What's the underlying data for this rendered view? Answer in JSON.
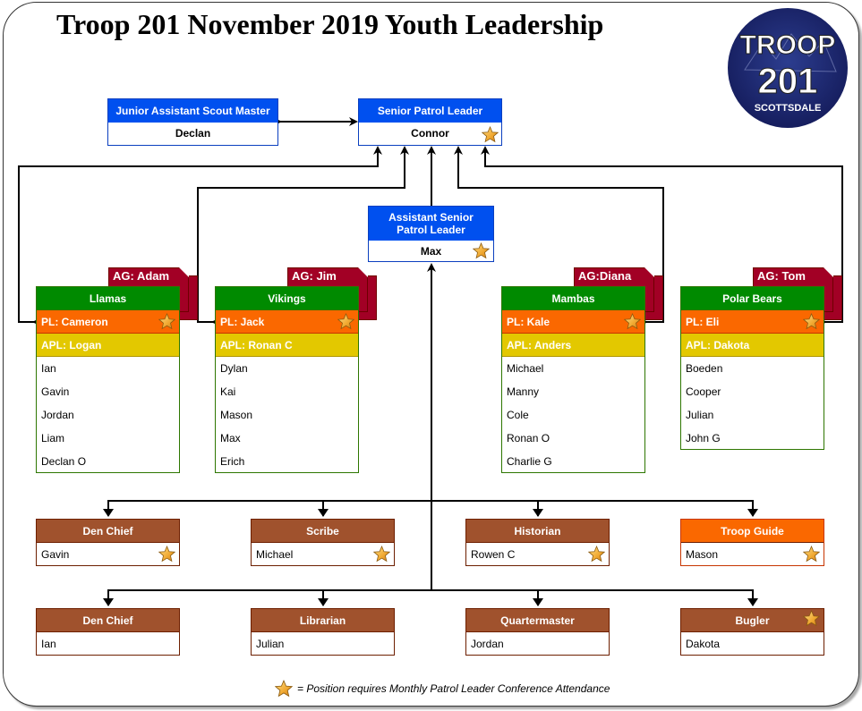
{
  "title": "Troop 201 November 2019 Youth Leadership",
  "logo": {
    "line1": "TROOP",
    "line2": "201",
    "line3": "SCOTTSDALE"
  },
  "colors": {
    "leader_blue": "#0050ef",
    "patrol_green": "#008a00",
    "pl_orange": "#fa6800",
    "apl_yellow": "#e3c800",
    "ag_red": "#a20025",
    "position_brown": "#a0522d",
    "star_gold": "#f0a830"
  },
  "leaders": {
    "jasm": {
      "title": "Junior Assistant Scout Master",
      "name": "Declan"
    },
    "spl": {
      "title": "Senior Patrol Leader",
      "name": "Connor"
    },
    "aspl": {
      "title_line1": "Assistant Senior",
      "title_line2": "Patrol Leader",
      "name": "Max"
    }
  },
  "patrols": [
    {
      "ag": "AG: Adam",
      "name": "Llamas",
      "pl": "PL: Cameron",
      "apl": "APL: Logan",
      "members": [
        "Ian",
        "Gavin",
        "Jordan",
        "Liam",
        "Declan O"
      ]
    },
    {
      "ag": "AG: Jim",
      "name": "Vikings",
      "pl": "PL: Jack",
      "apl": "APL: Ronan C",
      "members": [
        "Dylan",
        "Kai",
        "Mason",
        "Max",
        "Erich"
      ]
    },
    {
      "ag": "AG:Diana",
      "name": "Mambas",
      "pl": "PL: Kale",
      "apl": "APL: Anders",
      "members": [
        "Michael",
        "Manny",
        "Cole",
        "Ronan O",
        "Charlie G"
      ]
    },
    {
      "ag": "AG: Tom",
      "name": "Polar Bears",
      "pl": "PL: Eli",
      "apl": "APL: Dakota",
      "members": [
        "Boeden",
        "Cooper",
        "Julian",
        "John G"
      ]
    }
  ],
  "positions_row1": [
    {
      "title": "Den Chief",
      "name": "Gavin"
    },
    {
      "title": "Scribe",
      "name": "Michael"
    },
    {
      "title": "Historian",
      "name": "Rowen C"
    },
    {
      "title": "Troop Guide",
      "name": "Mason"
    }
  ],
  "positions_row2": [
    {
      "title": "Den Chief",
      "name": "Ian"
    },
    {
      "title": "Librarian",
      "name": "Julian"
    },
    {
      "title": "Quartermaster",
      "name": "Jordan"
    },
    {
      "title": "Bugler",
      "name": "Dakota"
    }
  ],
  "legend": "= Position requires Monthly Patrol Leader Conference Attendance"
}
